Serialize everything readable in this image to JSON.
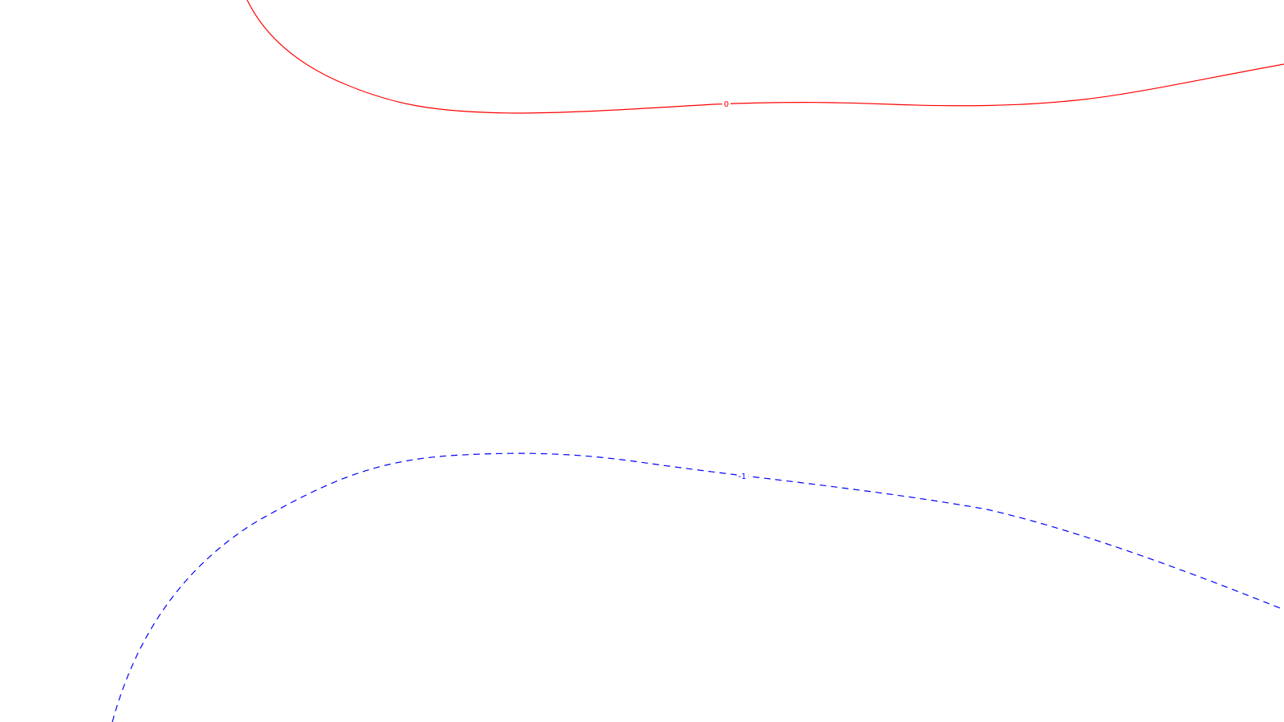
{
  "chart_data": {
    "type": "contour",
    "title": "",
    "xlabel": "",
    "ylabel": "",
    "grid": false,
    "legend": "none",
    "contours": [
      {
        "level_label": "0",
        "color": "#ff0000",
        "style": "solid"
      },
      {
        "level_label": "-1",
        "color": "#0000ff",
        "style": "dashed"
      }
    ]
  }
}
